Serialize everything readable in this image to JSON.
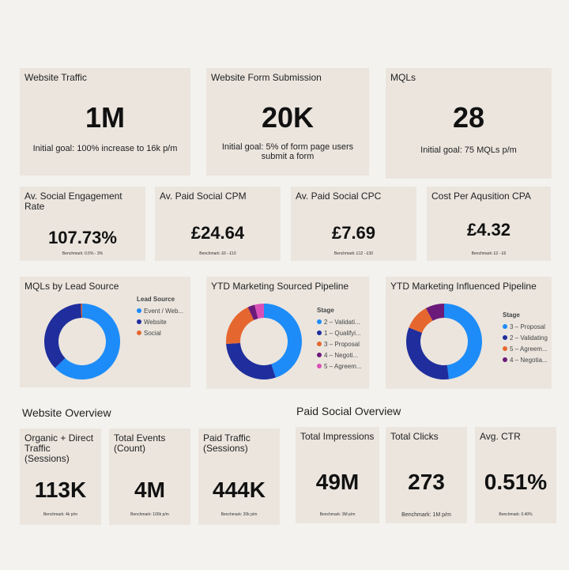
{
  "top_kpis": [
    {
      "title": "Website Traffic",
      "value": "1M",
      "goal": "Initial goal: 100% increase to 16k p/m"
    },
    {
      "title": "Website Form Submission",
      "value": "20K",
      "goal": "Initial goal: 5% of form page users submit a form"
    },
    {
      "title": "MQLs",
      "value": "28",
      "goal": "Initial goal: 75 MQLs p/m"
    }
  ],
  "social_kpis": [
    {
      "title": "Av. Social Engagement Rate",
      "value": "107.73%",
      "benchmark": "Benchmark: 0.5% - 3%"
    },
    {
      "title": "Av. Paid Social CPM",
      "value": "£24.64",
      "benchmark": "Benchmark: £6 - £10"
    },
    {
      "title": "Av. Paid Social CPC",
      "value": "£7.69",
      "benchmark": "Benchmark: £12 - £30"
    },
    {
      "title": "Cost Per Aqusition CPA",
      "value": "£4.32",
      "benchmark": "Benchmark: £2 - £6"
    }
  ],
  "charts": {
    "mqls_by_source": {
      "title": "MQLs by Lead Source",
      "legend_title": "Lead Source",
      "legend": [
        "Event / Web...",
        "Website",
        "Social"
      ],
      "colors": [
        "#1d8cf8",
        "#1f2e9c",
        "#e5672f"
      ]
    },
    "ytd_sourced": {
      "title": "YTD Marketing Sourced Pipeline",
      "legend_title": "Stage",
      "legend": [
        "2 – Validati...",
        "1 – Qualifyi...",
        "3 – Proposal",
        "4 – Negoti...",
        "5 – Agreem..."
      ],
      "colors": [
        "#1d8cf8",
        "#1f2e9c",
        "#e5672f",
        "#6b1a7a",
        "#d94fb8"
      ]
    },
    "ytd_influenced": {
      "title": "YTD Marketing Influenced Pipeline",
      "legend_title": "Stage",
      "legend": [
        "3 – Proposal",
        "2 – Validating",
        "5 – Agreem...",
        "4 – Negotia..."
      ],
      "colors": [
        "#1d8cf8",
        "#1f2e9c",
        "#e5672f",
        "#6b1a7a"
      ]
    }
  },
  "chart_data": [
    {
      "type": "pie",
      "title": "MQLs by Lead Source",
      "categories": [
        "Event / Web...",
        "Website",
        "Social"
      ],
      "values": [
        63,
        37,
        0.5
      ]
    },
    {
      "type": "pie",
      "title": "YTD Marketing Sourced Pipeline",
      "categories": [
        "2 – Validati...",
        "1 – Qualifyi...",
        "3 – Proposal",
        "4 – Negoti...",
        "5 – Agreem..."
      ],
      "values": [
        45,
        29,
        19,
        3,
        4
      ]
    },
    {
      "type": "pie",
      "title": "YTD Marketing Influenced Pipeline",
      "categories": [
        "3 – Proposal",
        "2 – Validating",
        "5 – Agreem...",
        "4 – Negotia..."
      ],
      "values": [
        48,
        33,
        11,
        8
      ]
    }
  ],
  "website_overview": {
    "heading": "Website Overview",
    "kpis": [
      {
        "title": "Organic + Direct Traffic (Sessions)",
        "value": "113K",
        "benchmark": "Benchmark: 4k p/m"
      },
      {
        "title": "Total Events (Count)",
        "value": "4M",
        "benchmark": "Benchmark: 100k p/m"
      },
      {
        "title": "Paid Traffic (Sessions)",
        "value": "444K",
        "benchmark": "Benchmark: 20k p/m"
      }
    ]
  },
  "paid_social_overview": {
    "heading": "Paid Social Overview",
    "kpis": [
      {
        "title": "Total Impressions",
        "value": "49M",
        "benchmark": "Benchmark: 3M p/m"
      },
      {
        "title": "Total Clicks",
        "value": "273",
        "benchmark": "Benchmark: 1M p/m"
      },
      {
        "title": "Avg. CTR",
        "value": "0.51%",
        "benchmark": "Benchmark: 0.40%"
      }
    ]
  }
}
